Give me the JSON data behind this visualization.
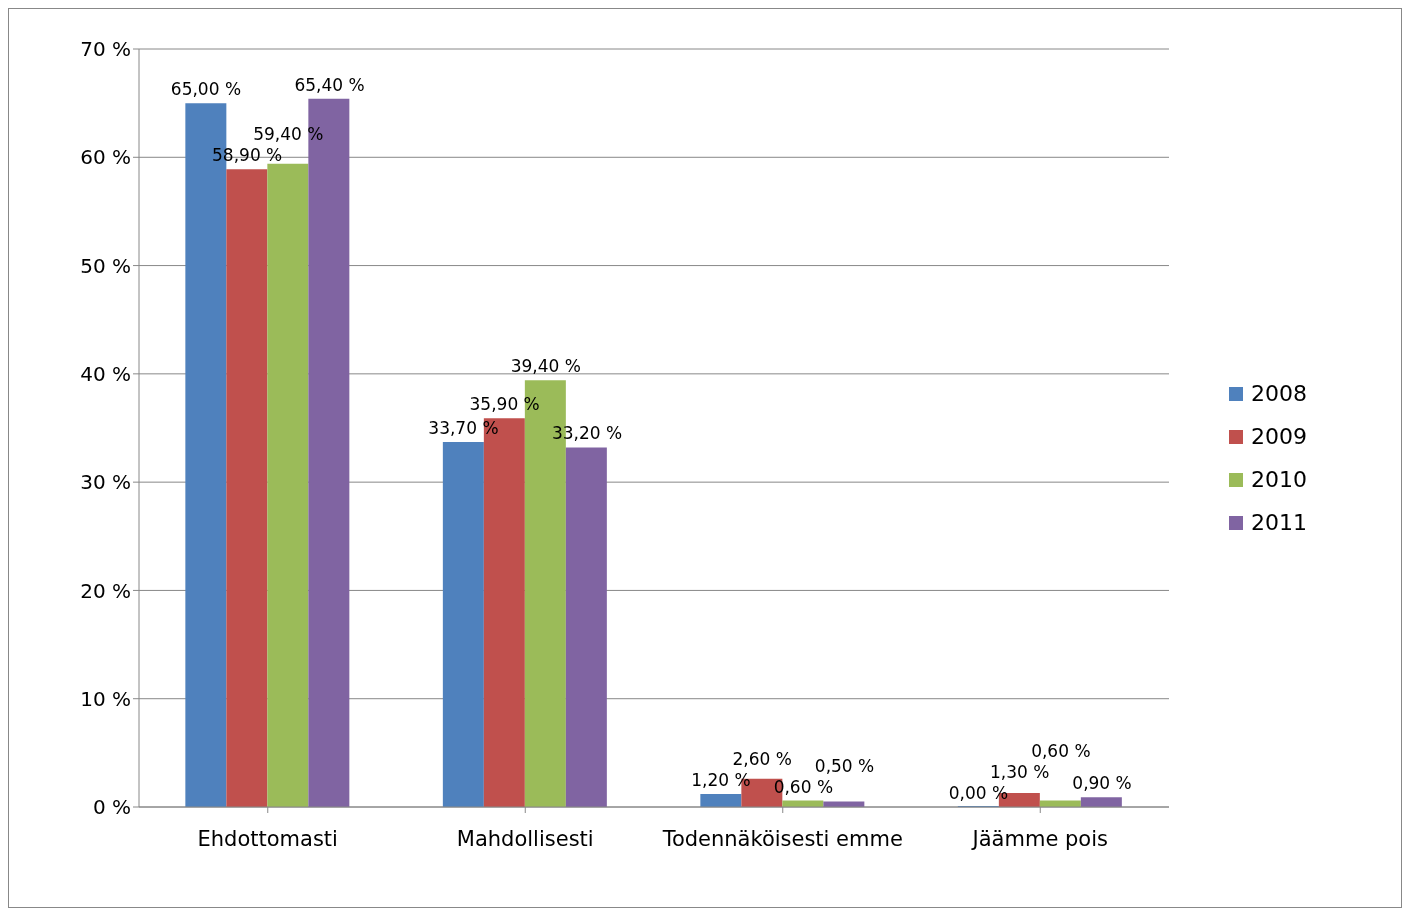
{
  "chart_data": {
    "type": "bar",
    "categories": [
      "Ehdottomasti",
      "Mahdollisesti",
      "Todennäköisesti emme",
      "Jäämme pois"
    ],
    "series": [
      {
        "name": "2008",
        "color": "#4f81bd",
        "values": [
          65.0,
          33.7,
          1.2,
          0.0
        ],
        "value_labels": [
          "65,00 %",
          "33,70 %",
          "1,20 %",
          "0,00 %"
        ]
      },
      {
        "name": "2009",
        "color": "#c0504d",
        "values": [
          58.9,
          35.9,
          2.6,
          1.3
        ],
        "value_labels": [
          "58,90 %",
          "35,90 %",
          "2,60 %",
          "1,30 %"
        ]
      },
      {
        "name": "2010",
        "color": "#9bbb59",
        "values": [
          59.4,
          39.4,
          0.6,
          0.6
        ],
        "value_labels": [
          "59,40 %",
          "39,40 %",
          "0,60 %",
          "0,60 %"
        ]
      },
      {
        "name": "2011",
        "color": "#8064a2",
        "values": [
          65.4,
          33.2,
          0.5,
          0.9
        ],
        "value_labels": [
          "65,40 %",
          "33,20 %",
          "0,50 %",
          "0,90 %"
        ]
      }
    ],
    "ylim": [
      0,
      70
    ],
    "yticks": [
      {
        "value": 0,
        "label": "0 %"
      },
      {
        "value": 10,
        "label": "10 %"
      },
      {
        "value": 20,
        "label": "20 %"
      },
      {
        "value": 30,
        "label": "30 %"
      },
      {
        "value": 40,
        "label": "40 %"
      },
      {
        "value": 50,
        "label": "50 %"
      },
      {
        "value": 60,
        "label": "60 %"
      },
      {
        "value": 70,
        "label": "70 %"
      }
    ],
    "grid": "y",
    "legend": "right"
  }
}
